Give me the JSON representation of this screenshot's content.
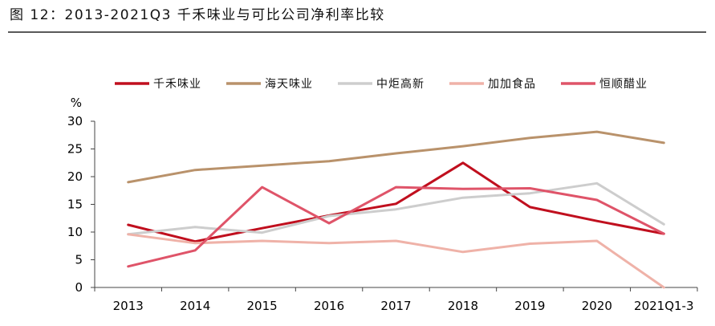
{
  "chart_data": {
    "type": "line",
    "title": "图 12：2013-2021Q3 千禾味业与可比公司净利率比较",
    "xlabel": "",
    "ylabel": "%",
    "ylim": [
      0,
      30
    ],
    "yticks": [
      0,
      5,
      10,
      15,
      20,
      25,
      30
    ],
    "grid": false,
    "legend_position": "top",
    "categories": [
      "2013",
      "2014",
      "2015",
      "2016",
      "2017",
      "2018",
      "2019",
      "2020",
      "2021Q1-3"
    ],
    "series": [
      {
        "name": "千禾味业",
        "color": "#c00f1e",
        "values": [
          11.3,
          8.3,
          10.7,
          13.0,
          15.1,
          22.5,
          14.5,
          12.0,
          9.7
        ]
      },
      {
        "name": "海天味业",
        "color": "#b9926b",
        "values": [
          19.0,
          21.2,
          22.0,
          22.8,
          24.2,
          25.5,
          27.0,
          28.1,
          26.1
        ]
      },
      {
        "name": "中炬高新",
        "color": "#cdcdcd",
        "values": [
          9.6,
          10.9,
          9.9,
          12.9,
          14.1,
          16.2,
          17.0,
          18.8,
          11.4
        ]
      },
      {
        "name": "加加食品",
        "color": "#efb2a8",
        "values": [
          9.6,
          8.0,
          8.4,
          8.0,
          8.4,
          6.4,
          7.9,
          8.4,
          0.0
        ]
      },
      {
        "name": "恒顺醋业",
        "color": "#df5469",
        "values": [
          3.8,
          6.7,
          18.1,
          11.6,
          18.1,
          17.8,
          17.9,
          15.8,
          9.7
        ]
      }
    ]
  }
}
